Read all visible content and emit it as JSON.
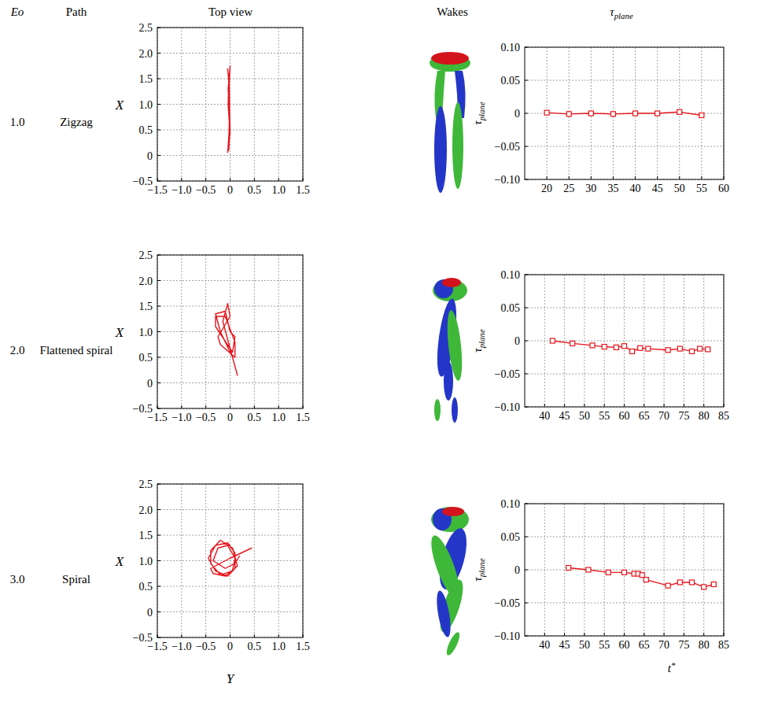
{
  "headers": [
    "Eo",
    "Path",
    "Top view",
    "Wakes",
    "τplane"
  ],
  "rows": [
    {
      "eo": "1.0",
      "path": "Zigzag"
    },
    {
      "eo": "2.0",
      "path": "Flattened spiral"
    },
    {
      "eo": "3.0",
      "path": "Spiral"
    }
  ],
  "chart_data": [
    {
      "type": "line",
      "y_label": "X",
      "color": "#e8141c",
      "grid": true,
      "x": [
        -0.05,
        -0.01,
        -0.03,
        0.0,
        -0.04,
        0.0,
        -0.03,
        -0.01,
        -0.02,
        -0.04,
        0.0,
        -0.02,
        -0.05
      ],
      "values": [
        0.05,
        0.6,
        1.2,
        1.75,
        1.3,
        0.5,
        0.1,
        0.9,
        1.6,
        1.0,
        0.4,
        1.35,
        1.7
      ],
      "xlim": [
        -1.5,
        1.5
      ],
      "ylim": [
        -0.5,
        2.5
      ],
      "xticks": [
        {
          "value": -1.5,
          "label": "−1.5"
        },
        {
          "value": -1.0,
          "label": "−1.0"
        },
        {
          "value": -0.5,
          "label": "−0.5"
        },
        0,
        0.5,
        {
          "value": 1.0,
          "label": "1.0"
        },
        1.5
      ],
      "yticks": [
        {
          "value": -0.5,
          "label": "−0.5"
        },
        0,
        0.5,
        {
          "value": 1.0,
          "label": "1.0"
        },
        1.5,
        {
          "value": 2.0,
          "label": "2.0"
        },
        2.5
      ]
    },
    {
      "type": "line",
      "marker": "square",
      "y_label": "τplane",
      "color": "#e8141c",
      "grid": true,
      "x": [
        20,
        25,
        30,
        35,
        40,
        45,
        50,
        55
      ],
      "values": [
        0.001,
        -0.001,
        0,
        -0.001,
        0,
        0,
        0.002,
        -0.003
      ],
      "xlim": [
        15,
        60
      ],
      "ylim": [
        -0.1,
        0.1
      ],
      "xticks": [
        20,
        25,
        30,
        35,
        40,
        45,
        50,
        55,
        60
      ],
      "yticks": [
        {
          "value": -0.1,
          "label": "−0.10"
        },
        {
          "value": -0.05,
          "label": "−0.05"
        },
        0,
        0.05,
        {
          "value": 0.1,
          "label": "0.10"
        }
      ]
    },
    {
      "type": "line",
      "y_label": "X",
      "color": "#e8141c",
      "grid": true,
      "x": [
        0.0,
        -0.1,
        -0.3,
        -0.2,
        0.05,
        0.15,
        0.05,
        -0.15,
        -0.05,
        0.0,
        -0.25,
        -0.2,
        0.1,
        0.1,
        -0.1,
        -0.3,
        -0.3,
        0.05,
        0.1,
        0.0
      ],
      "values": [
        1.0,
        1.4,
        1.35,
        1.0,
        0.5,
        0.15,
        0.5,
        1.2,
        1.55,
        1.3,
        0.9,
        0.75,
        0.5,
        0.8,
        1.3,
        1.3,
        1.1,
        0.6,
        0.9,
        1.0
      ],
      "xlim": [
        -1.5,
        1.5
      ],
      "ylim": [
        -0.5,
        2.5
      ],
      "xticks": [
        {
          "value": -1.5,
          "label": "−1.5"
        },
        {
          "value": -1.0,
          "label": "−1.0"
        },
        {
          "value": -0.5,
          "label": "−0.5"
        },
        0,
        0.5,
        {
          "value": 1.0,
          "label": "1.0"
        },
        1.5
      ],
      "yticks": [
        {
          "value": -0.5,
          "label": "−0.5"
        },
        0,
        0.5,
        {
          "value": 1.0,
          "label": "1.0"
        },
        1.5,
        {
          "value": 2.0,
          "label": "2.0"
        },
        2.5
      ]
    },
    {
      "type": "line",
      "marker": "square",
      "y_label": "τplane",
      "color": "#e8141c",
      "grid": true,
      "x": [
        42,
        47,
        52,
        55,
        58,
        60,
        62,
        64,
        66,
        71,
        74,
        77,
        79,
        81
      ],
      "values": [
        0,
        -0.004,
        -0.007,
        -0.009,
        -0.01,
        -0.008,
        -0.016,
        -0.011,
        -0.012,
        -0.014,
        -0.012,
        -0.016,
        -0.012,
        -0.013
      ],
      "xlim": [
        35,
        85
      ],
      "ylim": [
        -0.1,
        0.1
      ],
      "xticks": [
        40,
        45,
        50,
        55,
        60,
        65,
        70,
        75,
        80,
        85
      ],
      "yticks": [
        {
          "value": -0.1,
          "label": "−0.10"
        },
        {
          "value": -0.05,
          "label": "−0.05"
        },
        0,
        0.05,
        {
          "value": 0.1,
          "label": "0.10"
        }
      ]
    },
    {
      "type": "line",
      "x_label": "Y",
      "y_label": "X",
      "color": "#e8141c",
      "grid": true,
      "x": [
        0.45,
        0.0,
        -0.4,
        -0.35,
        -0.1,
        0.1,
        0.1,
        -0.05,
        -0.3,
        -0.45,
        -0.3,
        -0.05,
        0.15,
        0.05,
        -0.2,
        -0.4,
        -0.4,
        -0.2,
        0.05,
        0.1,
        -0.05,
        -0.25,
        -0.35,
        -0.1,
        0.1,
        0.2
      ],
      "values": [
        1.25,
        1.05,
        0.85,
        0.75,
        0.7,
        0.85,
        1.15,
        1.35,
        1.3,
        1.05,
        0.8,
        0.7,
        0.9,
        1.25,
        1.4,
        1.2,
        0.95,
        0.72,
        0.8,
        1.05,
        1.3,
        1.25,
        1.0,
        0.85,
        0.95,
        1.1
      ],
      "xlim": [
        -1.5,
        1.5
      ],
      "ylim": [
        -0.5,
        2.5
      ],
      "xticks": [
        {
          "value": -1.5,
          "label": "−1.5"
        },
        {
          "value": -1.0,
          "label": "−1.0"
        },
        {
          "value": -0.5,
          "label": "−0.5"
        },
        0,
        0.5,
        {
          "value": 1.0,
          "label": "1.0"
        },
        1.5
      ],
      "yticks": [
        {
          "value": -0.5,
          "label": "−0.5"
        },
        0,
        0.5,
        {
          "value": 1.0,
          "label": "1.0"
        },
        1.5,
        {
          "value": 2.0,
          "label": "2.0"
        },
        2.5
      ]
    },
    {
      "type": "line",
      "marker": "square",
      "x_label": "t*",
      "y_label": "τplane",
      "color": "#e8141c",
      "grid": true,
      "x": [
        46,
        51,
        56,
        60,
        62.5,
        63.5,
        64.5,
        65.5,
        71,
        74,
        77,
        80,
        82.5
      ],
      "values": [
        0.003,
        0,
        -0.004,
        -0.004,
        -0.006,
        -0.006,
        -0.008,
        -0.015,
        -0.024,
        -0.019,
        -0.019,
        -0.026,
        -0.022
      ],
      "xlim": [
        35,
        85
      ],
      "ylim": [
        -0.1,
        0.1
      ],
      "xticks": [
        40,
        45,
        50,
        55,
        60,
        65,
        70,
        75,
        80,
        85
      ],
      "yticks": [
        {
          "value": -0.1,
          "label": "−0.10"
        },
        {
          "value": -0.05,
          "label": "−0.05"
        },
        0,
        0.05,
        {
          "value": 0.1,
          "label": "0.10"
        }
      ]
    }
  ]
}
